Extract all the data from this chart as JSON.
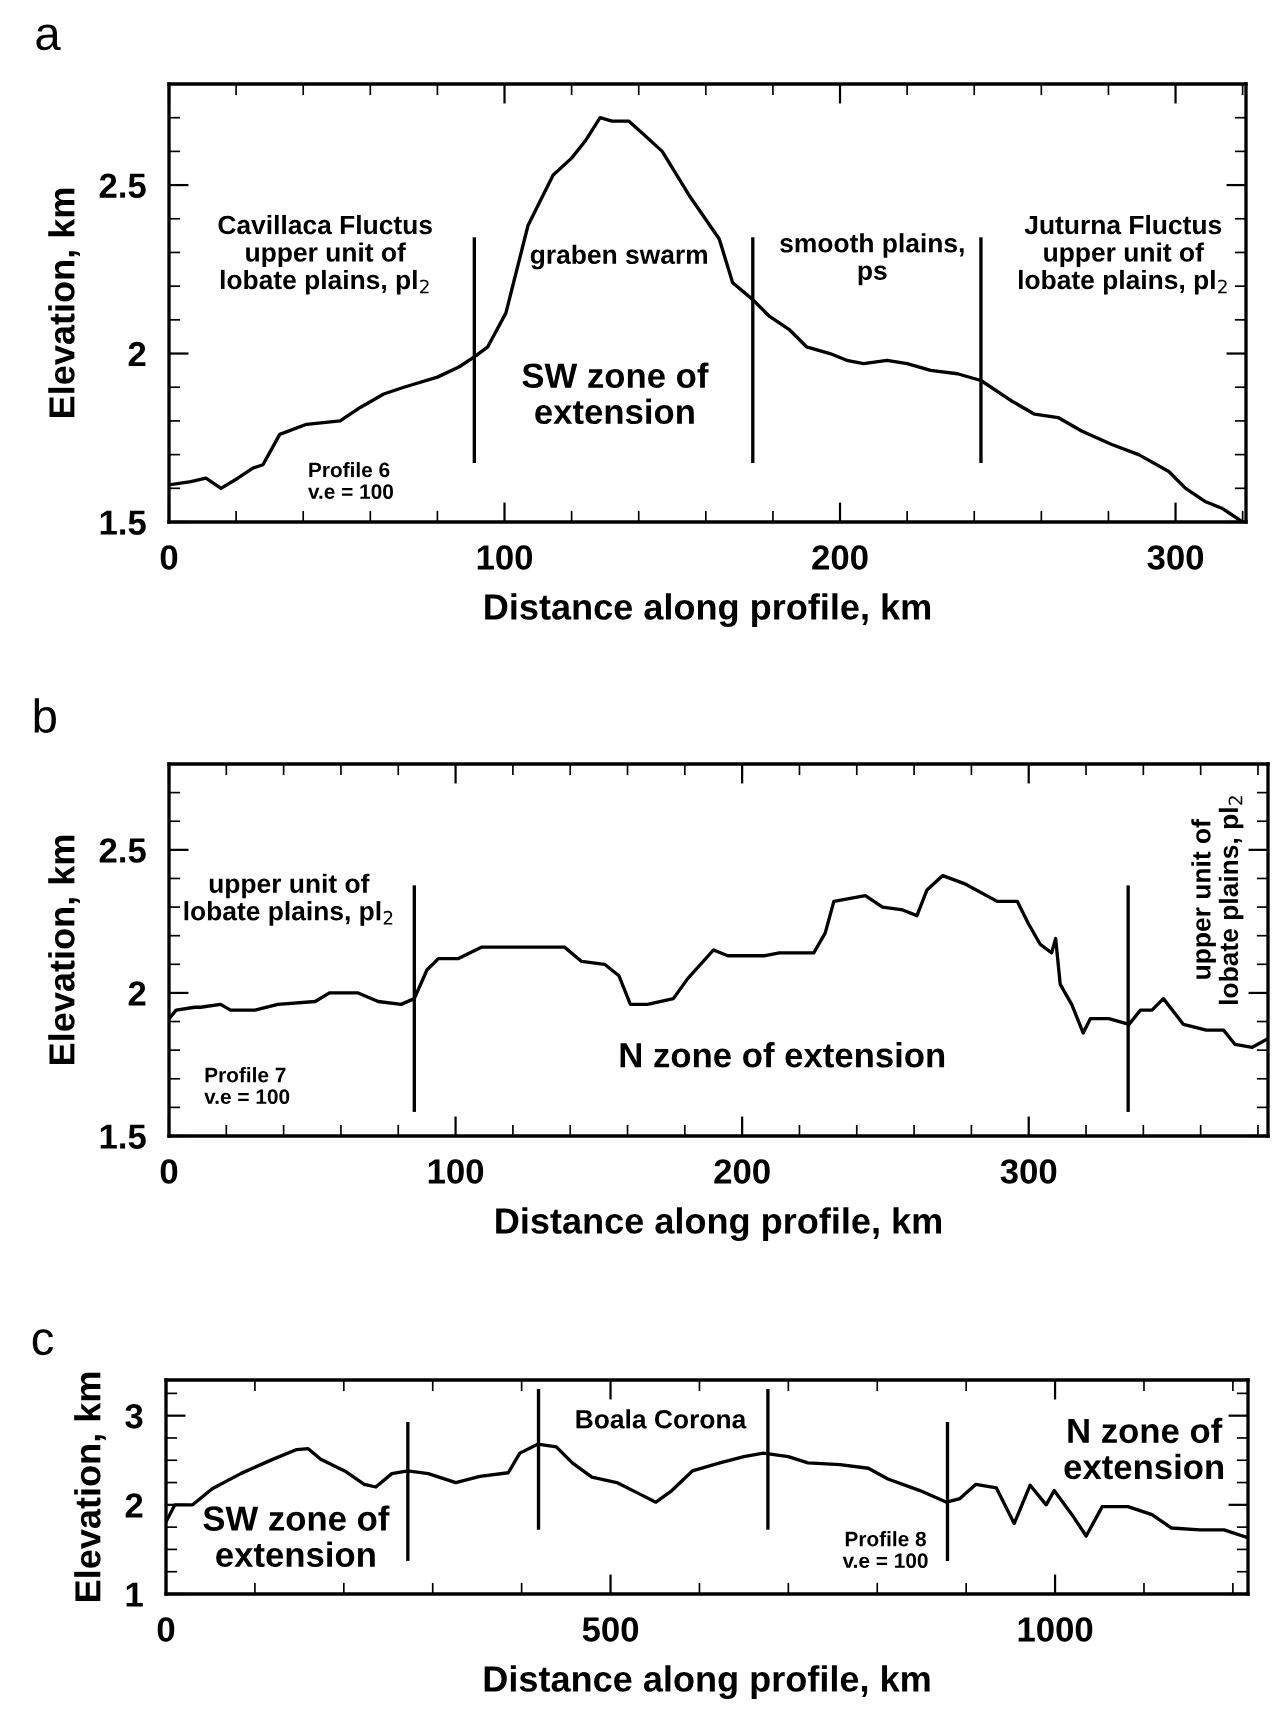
{
  "chart_data": [
    {
      "type": "line",
      "title": "a",
      "xlabel": "Distance along profile, km",
      "ylabel": "Elevation, km",
      "xlim": [
        0,
        321
      ],
      "ylim": [
        1.5,
        2.8
      ],
      "xticks": [
        0,
        {
          "value": 20,
          "label": null
        },
        {
          "value": 40,
          "label": null
        },
        {
          "value": 60,
          "label": null
        },
        {
          "value": 80,
          "label": null
        },
        100,
        {
          "value": 120,
          "label": null
        },
        {
          "value": 140,
          "label": null
        },
        {
          "value": 160,
          "label": null
        },
        {
          "value": 180,
          "label": null
        },
        200,
        {
          "value": 220,
          "label": null
        },
        {
          "value": 240,
          "label": null
        },
        {
          "value": 260,
          "label": null
        },
        {
          "value": 280,
          "label": null
        },
        300,
        {
          "value": 320,
          "label": null
        }
      ],
      "yticks": [
        1.5,
        {
          "value": 1.6,
          "label": null
        },
        {
          "value": 1.7,
          "label": null
        },
        {
          "value": 1.8,
          "label": null
        },
        {
          "value": 1.9,
          "label": null
        },
        2,
        {
          "value": 2.1,
          "label": null
        },
        {
          "value": 2.2,
          "label": null
        },
        {
          "value": 2.3,
          "label": null
        },
        {
          "value": 2.4,
          "label": null
        },
        2.5,
        {
          "value": 2.6,
          "label": null
        },
        {
          "value": 2.7,
          "label": null
        }
      ],
      "marker": "none",
      "line_style": "solid",
      "annotations": [
        "Cavillaca Fluctus\nupper unit of\nlobate plains, pl$_{2}$",
        "graben swarm",
        "smooth plains,\nps",
        "Juturna Fluctus\nupper unit of\nlobate plains, pl$_{2}$",
        "SW zone of\nextension",
        "Profile 6\nv.e = 100"
      ],
      "series": [
        {
          "color": "#000000",
          "x": [
            0,
            6.5,
            11,
            15.5,
            20.5,
            25,
            28,
            33,
            41,
            51,
            57,
            64,
            70,
            80,
            86.4,
            91,
            95,
            100.4,
            103.7,
            107,
            110,
            114.5,
            120,
            124,
            128.5,
            132,
            137,
            141.5,
            147,
            155,
            164,
            168,
            174,
            179,
            185,
            190,
            197,
            202,
            207,
            214,
            220,
            227,
            235,
            242,
            251,
            258,
            265,
            272,
            281,
            289,
            298,
            303,
            309,
            314,
            320
          ],
          "values": [
            1.61,
            1.62,
            1.63,
            1.6,
            1.63,
            1.66,
            1.67,
            1.76,
            1.79,
            1.8,
            1.84,
            1.88,
            1.9,
            1.93,
            1.96,
            1.99,
            2.02,
            2.12,
            2.25,
            2.38,
            2.44,
            2.53,
            2.58,
            2.63,
            2.7,
            2.69,
            2.69,
            2.65,
            2.6,
            2.47,
            2.34,
            2.21,
            2.16,
            2.11,
            2.07,
            2.02,
            2.0,
            1.98,
            1.97,
            1.98,
            1.97,
            1.95,
            1.94,
            1.92,
            1.86,
            1.82,
            1.81,
            1.77,
            1.73,
            1.7,
            1.65,
            1.6,
            1.56,
            1.54,
            1.5
          ]
        },
        {
          "color": "#000000",
          "x": [
            91,
            91
          ],
          "values": [
            1.68,
            2.34
          ]
        },
        {
          "color": "#000000",
          "x": [
            174,
            174
          ],
          "values": [
            1.68,
            2.34
          ]
        },
        {
          "color": "#000000",
          "x": [
            242,
            242
          ],
          "values": [
            1.68,
            2.34
          ]
        }
      ]
    },
    {
      "type": "line",
      "title": "b",
      "xlabel": "Distance along profile, km",
      "ylabel": "Elevation, km",
      "xlim": [
        0,
        383.5
      ],
      "ylim": [
        1.5,
        2.8
      ],
      "xticks": [
        0,
        {
          "value": 20,
          "label": null
        },
        {
          "value": 40,
          "label": null
        },
        {
          "value": 60,
          "label": null
        },
        {
          "value": 80,
          "label": null
        },
        100,
        {
          "value": 120,
          "label": null
        },
        {
          "value": 140,
          "label": null
        },
        {
          "value": 160,
          "label": null
        },
        {
          "value": 180,
          "label": null
        },
        200,
        {
          "value": 220,
          "label": null
        },
        {
          "value": 240,
          "label": null
        },
        {
          "value": 260,
          "label": null
        },
        {
          "value": 280,
          "label": null
        },
        300,
        {
          "value": 320,
          "label": null
        },
        {
          "value": 340,
          "label": null
        },
        {
          "value": 360,
          "label": null
        },
        {
          "value": 380,
          "label": null
        }
      ],
      "yticks": [
        1.5,
        {
          "value": 1.6,
          "label": null
        },
        {
          "value": 1.7,
          "label": null
        },
        {
          "value": 1.8,
          "label": null
        },
        {
          "value": 1.9,
          "label": null
        },
        2,
        {
          "value": 2.1,
          "label": null
        },
        {
          "value": 2.2,
          "label": null
        },
        {
          "value": 2.3,
          "label": null
        },
        {
          "value": 2.4,
          "label": null
        },
        2.5,
        {
          "value": 2.6,
          "label": null
        },
        {
          "value": 2.7,
          "label": null
        }
      ],
      "marker": "none",
      "line_style": "solid",
      "annotations": [
        "upper unit of\nlobate plains, pl$_{2}$",
        "upper unit of\nlobate plains, pl$_{2}$",
        "N zone of extension",
        "Profile 7\nv.e = 100"
      ],
      "series": [
        {
          "color": "#000000",
          "x": [
            0,
            2.5,
            9,
            11,
            18,
            21.5,
            30,
            38,
            51,
            56,
            66,
            73,
            81,
            85.6,
            90,
            94,
            101,
            109,
            121.5,
            138,
            144,
            152,
            157,
            161,
            167,
            176,
            181,
            190,
            195,
            208,
            213,
            225,
            229,
            232,
            243,
            249,
            256,
            261,
            264.5,
            270,
            278,
            289,
            296,
            300,
            304,
            308,
            309.4,
            311,
            315,
            319,
            321.5,
            328,
            335,
            339,
            343,
            347,
            354,
            362,
            368,
            372,
            378,
            383.5
          ],
          "values": [
            1.91,
            1.94,
            1.95,
            1.95,
            1.96,
            1.94,
            1.94,
            1.96,
            1.97,
            2.0,
            2.0,
            1.97,
            1.96,
            1.98,
            2.08,
            2.12,
            2.12,
            2.16,
            2.16,
            2.16,
            2.11,
            2.1,
            2.06,
            1.96,
            1.96,
            1.98,
            2.05,
            2.15,
            2.13,
            2.13,
            2.14,
            2.14,
            2.21,
            2.32,
            2.34,
            2.3,
            2.29,
            2.27,
            2.36,
            2.41,
            2.38,
            2.32,
            2.32,
            2.24,
            2.17,
            2.14,
            2.19,
            2.03,
            1.96,
            1.86,
            1.91,
            1.91,
            1.89,
            1.94,
            1.94,
            1.98,
            1.89,
            1.87,
            1.87,
            1.82,
            1.81,
            1.84
          ]
        },
        {
          "color": "#000000",
          "x": [
            85.6,
            85.6
          ],
          "values": [
            1.59,
            2.37
          ]
        },
        {
          "color": "#000000",
          "x": [
            334.7,
            334.7
          ],
          "values": [
            1.59,
            2.37
          ]
        }
      ]
    },
    {
      "type": "line",
      "title": "c",
      "xlabel": "Distance along profile, km",
      "ylabel": "Elevation, km",
      "xlim": [
        0,
        1217
      ],
      "ylim": [
        1,
        3.4
      ],
      "xticks": [
        0,
        {
          "value": 100,
          "label": null
        },
        {
          "value": 200,
          "label": null
        },
        {
          "value": 300,
          "label": null
        },
        {
          "value": 400,
          "label": null
        },
        500,
        {
          "value": 600,
          "label": null
        },
        {
          "value": 700,
          "label": null
        },
        {
          "value": 800,
          "label": null
        },
        {
          "value": 900,
          "label": null
        },
        1000,
        {
          "value": 1100,
          "label": null
        },
        {
          "value": 1200,
          "label": null
        }
      ],
      "yticks": [
        1,
        {
          "value": 1.25,
          "label": null
        },
        {
          "value": 1.5,
          "label": null
        },
        {
          "value": 1.75,
          "label": null
        },
        2,
        {
          "value": 2.25,
          "label": null
        },
        {
          "value": 2.5,
          "label": null
        },
        {
          "value": 2.75,
          "label": null
        },
        3,
        {
          "value": 3.25,
          "label": null
        }
      ],
      "marker": "none",
      "line_style": "solid",
      "annotations": [
        "SW zone of\nextension",
        "Boala Corona",
        "Profile 8\nv.e = 100",
        "N zone of\nextension"
      ],
      "series": [
        {
          "color": "#000000",
          "x": [
            0,
            10,
            30,
            52,
            84,
            120,
            147,
            160,
            174,
            201,
            223,
            236,
            254,
            272,
            295,
            326,
            353,
            385,
            398,
            418,
            439,
            457,
            479,
            507,
            533,
            551,
            569,
            592,
            623,
            650,
            672,
            700,
            722,
            758,
            790,
            812,
            848,
            878,
            893,
            911,
            934,
            954,
            972,
            990,
            999,
            1019,
            1035,
            1053,
            1082,
            1109,
            1131,
            1163,
            1190,
            1217
          ],
          "values": [
            1.81,
            2.0,
            2.0,
            2.18,
            2.35,
            2.51,
            2.62,
            2.63,
            2.51,
            2.38,
            2.23,
            2.2,
            2.35,
            2.38,
            2.35,
            2.25,
            2.32,
            2.36,
            2.58,
            2.68,
            2.65,
            2.47,
            2.31,
            2.25,
            2.12,
            2.03,
            2.16,
            2.38,
            2.47,
            2.54,
            2.58,
            2.54,
            2.47,
            2.45,
            2.41,
            2.29,
            2.16,
            2.03,
            2.07,
            2.23,
            2.19,
            1.79,
            2.22,
            2.0,
            2.16,
            1.89,
            1.65,
            1.98,
            1.98,
            1.89,
            1.74,
            1.72,
            1.72,
            1.63
          ]
        },
        {
          "color": "#000000",
          "x": [
            272,
            272
          ],
          "values": [
            1.39,
            2.91
          ]
        },
        {
          "color": "#000000",
          "x": [
            419,
            419
          ],
          "values": [
            1.74,
            3.28
          ]
        },
        {
          "color": "#000000",
          "x": [
            677,
            677
          ],
          "values": [
            1.74,
            3.28
          ]
        },
        {
          "color": "#000000",
          "x": [
            879,
            879
          ],
          "values": [
            1.39,
            2.91
          ]
        }
      ]
    }
  ]
}
